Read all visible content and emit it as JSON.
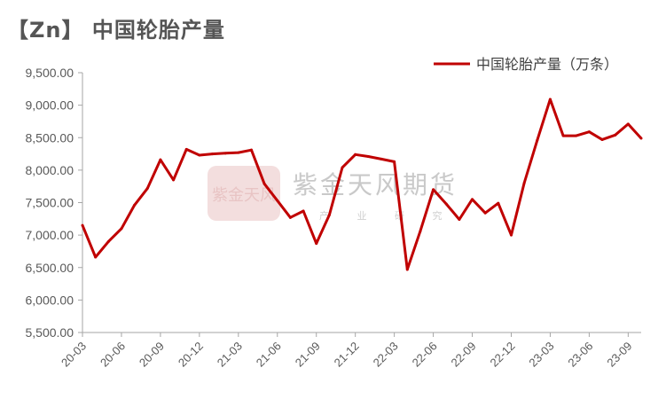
{
  "page": {
    "title": "【Zn】 中国轮胎产量"
  },
  "watermark": {
    "logo_text": "紫金天风",
    "brand": "紫金天风期货",
    "tagline": "产 业 研 究"
  },
  "colors": {
    "series": "#c00000",
    "axis": "#a6a6a6",
    "text": "#595959"
  },
  "chart_data": {
    "type": "line",
    "title": "",
    "xlabel": "",
    "ylabel": "",
    "ylim": [
      5500,
      9500
    ],
    "yticks": [
      "5,500.00",
      "6,000.00",
      "6,500.00",
      "7,000.00",
      "7,500.00",
      "8,000.00",
      "8,500.00",
      "9,000.00",
      "9,500.00"
    ],
    "ytick_values": [
      5500,
      6000,
      6500,
      7000,
      7500,
      8000,
      8500,
      9000,
      9500
    ],
    "legend_position": "top-right",
    "x": [
      "20-03",
      "20-04",
      "20-05",
      "20-06",
      "20-07",
      "20-08",
      "20-09",
      "20-10",
      "20-11",
      "20-12",
      "21-01",
      "21-02",
      "21-03",
      "21-04",
      "21-05",
      "21-06",
      "21-07",
      "21-08",
      "21-09",
      "21-10",
      "21-11",
      "21-12",
      "22-01",
      "22-02",
      "22-03",
      "22-04",
      "22-05",
      "22-06",
      "22-07",
      "22-08",
      "22-09",
      "22-10",
      "22-11",
      "22-12",
      "23-01",
      "23-02",
      "23-03",
      "23-04",
      "23-05",
      "23-06",
      "23-07",
      "23-08",
      "23-09",
      "23-10"
    ],
    "xtick_labels": [
      "20-03",
      "20-06",
      "20-09",
      "20-12",
      "21-03",
      "21-06",
      "21-09",
      "21-12",
      "22-03",
      "22-06",
      "22-09",
      "22-12",
      "23-03",
      "23-06",
      "23-09"
    ],
    "series": [
      {
        "name": "中国轮胎产量（万条）",
        "values": [
          7150,
          6660,
          6900,
          7100,
          7460,
          7720,
          8160,
          7850,
          8320,
          8230,
          8250,
          8260,
          8270,
          8310,
          7790,
          7530,
          7270,
          7370,
          6870,
          7310,
          8040,
          8240,
          8210,
          8170,
          8130,
          6470,
          7060,
          7700,
          7480,
          7240,
          7550,
          7340,
          7490,
          7000,
          7800,
          8460,
          9090,
          8530,
          8530,
          8590,
          8470,
          8540,
          8710,
          8490
        ]
      }
    ]
  }
}
